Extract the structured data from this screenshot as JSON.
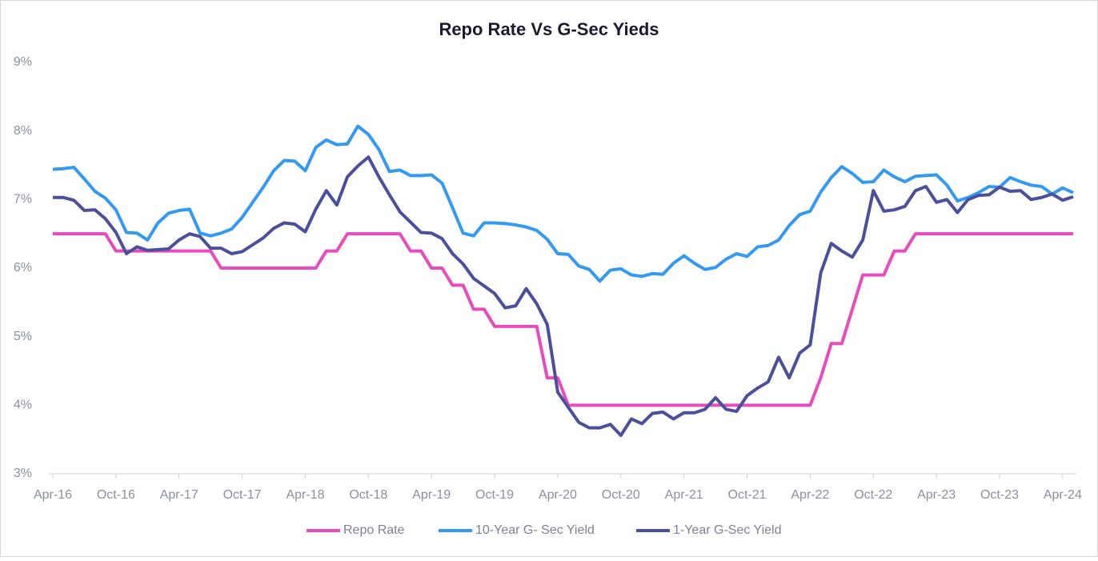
{
  "chart_data": {
    "type": "line",
    "title": "Repo Rate Vs G-Sec Yieds",
    "categories": [
      "Apr-16",
      null,
      null,
      null,
      null,
      null,
      "Oct-16",
      null,
      null,
      null,
      null,
      null,
      "Apr-17",
      null,
      null,
      null,
      null,
      null,
      "Oct-17",
      null,
      null,
      null,
      null,
      null,
      "Apr-18",
      null,
      null,
      null,
      null,
      null,
      "Oct-18",
      null,
      null,
      null,
      null,
      null,
      "Apr-19",
      null,
      null,
      null,
      null,
      null,
      "Oct-19",
      null,
      null,
      null,
      null,
      null,
      "Apr-20",
      null,
      null,
      null,
      null,
      null,
      "Oct-20",
      null,
      null,
      null,
      null,
      null,
      "Apr-21",
      null,
      null,
      null,
      null,
      null,
      "Oct-21",
      null,
      null,
      null,
      null,
      null,
      "Apr-22",
      null,
      null,
      null,
      null,
      null,
      "Oct-22",
      null,
      null,
      null,
      null,
      null,
      "Apr-23",
      null,
      null,
      null,
      null,
      null,
      "Oct-23",
      null,
      null,
      null,
      null,
      null,
      "Apr-24",
      null
    ],
    "series": [
      {
        "name": "Repo Rate",
        "color": "#e64cbe",
        "values": [
          6.5,
          6.5,
          6.5,
          6.5,
          6.5,
          6.5,
          6.25,
          6.25,
          6.25,
          6.25,
          6.25,
          6.25,
          6.25,
          6.25,
          6.25,
          6.25,
          6.0,
          6.0,
          6.0,
          6.0,
          6.0,
          6.0,
          6.0,
          6.0,
          6.0,
          6.0,
          6.25,
          6.25,
          6.5,
          6.5,
          6.5,
          6.5,
          6.5,
          6.5,
          6.25,
          6.25,
          6.0,
          6.0,
          5.75,
          5.75,
          5.4,
          5.4,
          5.15,
          5.15,
          5.15,
          5.15,
          5.15,
          4.4,
          4.4,
          4.0,
          4.0,
          4.0,
          4.0,
          4.0,
          4.0,
          4.0,
          4.0,
          4.0,
          4.0,
          4.0,
          4.0,
          4.0,
          4.0,
          4.0,
          4.0,
          4.0,
          4.0,
          4.0,
          4.0,
          4.0,
          4.0,
          4.0,
          4.0,
          4.4,
          4.9,
          4.9,
          5.4,
          5.9,
          5.9,
          5.9,
          6.25,
          6.25,
          6.5,
          6.5,
          6.5,
          6.5,
          6.5,
          6.5,
          6.5,
          6.5,
          6.5,
          6.5,
          6.5,
          6.5,
          6.5,
          6.5,
          6.5,
          6.5
        ]
      },
      {
        "name": "10-Year G- Sec Yield",
        "color": "#3399f3",
        "values": [
          7.44,
          7.45,
          7.47,
          7.3,
          7.12,
          7.02,
          6.85,
          6.52,
          6.51,
          6.41,
          6.66,
          6.8,
          6.84,
          6.86,
          6.51,
          6.47,
          6.51,
          6.57,
          6.74,
          6.96,
          7.18,
          7.42,
          7.57,
          7.56,
          7.42,
          7.76,
          7.87,
          7.8,
          7.81,
          8.07,
          7.95,
          7.73,
          7.41,
          7.43,
          7.35,
          7.35,
          7.36,
          7.24,
          6.88,
          6.51,
          6.47,
          6.66,
          6.66,
          6.65,
          6.63,
          6.6,
          6.55,
          6.42,
          6.21,
          6.2,
          6.03,
          5.98,
          5.81,
          5.97,
          5.99,
          5.9,
          5.88,
          5.92,
          5.91,
          6.07,
          6.18,
          6.07,
          5.98,
          6.01,
          6.13,
          6.21,
          6.17,
          6.31,
          6.33,
          6.41,
          6.62,
          6.78,
          6.83,
          7.11,
          7.32,
          7.48,
          7.38,
          7.25,
          7.26,
          7.43,
          7.33,
          7.26,
          7.34,
          7.35,
          7.36,
          7.21,
          6.98,
          7.03,
          7.1,
          7.19,
          7.18,
          7.32,
          7.26,
          7.21,
          7.19,
          7.08,
          7.17,
          7.1
        ]
      },
      {
        "name": "1-Year G-Sec Yield",
        "color": "#4b4f9c",
        "values": [
          7.03,
          7.03,
          6.99,
          6.84,
          6.85,
          6.72,
          6.52,
          6.21,
          6.31,
          6.26,
          6.27,
          6.28,
          6.41,
          6.5,
          6.46,
          6.29,
          6.29,
          6.21,
          6.24,
          6.34,
          6.44,
          6.58,
          6.66,
          6.64,
          6.53,
          6.86,
          7.13,
          6.92,
          7.33,
          7.49,
          7.62,
          7.33,
          7.07,
          6.82,
          6.67,
          6.52,
          6.51,
          6.43,
          6.21,
          6.06,
          5.85,
          5.74,
          5.63,
          5.42,
          5.45,
          5.7,
          5.48,
          5.18,
          4.19,
          3.97,
          3.75,
          3.67,
          3.67,
          3.72,
          3.56,
          3.8,
          3.73,
          3.88,
          3.9,
          3.8,
          3.89,
          3.89,
          3.94,
          4.11,
          3.94,
          3.91,
          4.14,
          4.25,
          4.34,
          4.7,
          4.4,
          4.76,
          4.88,
          5.93,
          6.36,
          6.25,
          6.16,
          6.41,
          7.13,
          6.83,
          6.85,
          6.9,
          7.13,
          7.19,
          6.96,
          7.0,
          6.81,
          7.0,
          7.06,
          7.07,
          7.18,
          7.12,
          7.13,
          7.0,
          7.03,
          7.08,
          6.99,
          7.04
        ]
      }
    ],
    "ylim": [
      3,
      9
    ],
    "yticks": [
      {
        "value": 3,
        "label": "3%"
      },
      {
        "value": 4,
        "label": "4%"
      },
      {
        "value": 5,
        "label": "5%"
      },
      {
        "value": 6,
        "label": "6%"
      },
      {
        "value": 7,
        "label": "7%"
      },
      {
        "value": 8,
        "label": "8%"
      },
      {
        "value": 9,
        "label": "9%"
      }
    ],
    "grid": false,
    "legend": "bottom"
  }
}
